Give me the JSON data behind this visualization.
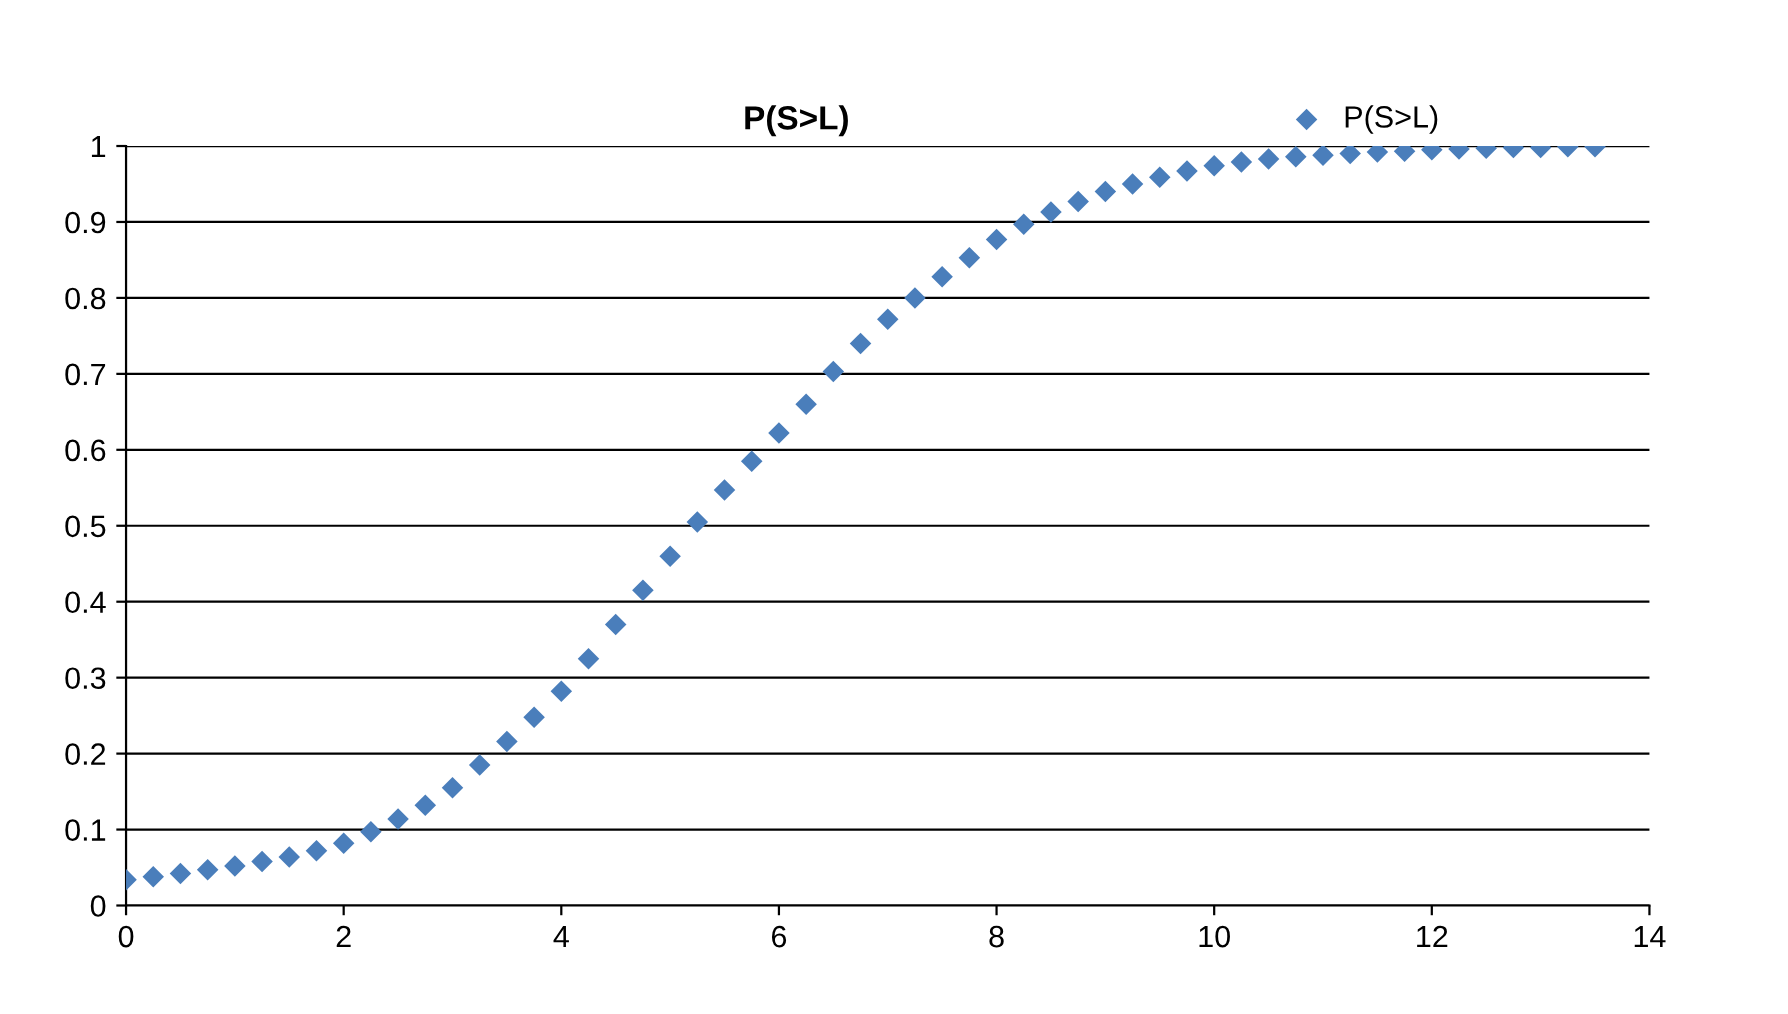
{
  "chart_data": {
    "type": "scatter",
    "title": "P(S>L)",
    "x": [
      0,
      0.25,
      0.5,
      0.75,
      1,
      1.25,
      1.5,
      1.75,
      2,
      2.25,
      2.5,
      2.75,
      3,
      3.25,
      3.5,
      3.75,
      4,
      4.25,
      4.5,
      4.75,
      5,
      5.25,
      5.5,
      5.75,
      6,
      6.25,
      6.5,
      6.75,
      7,
      7.25,
      7.5,
      7.75,
      8,
      8.25,
      8.5,
      8.75,
      9,
      9.25,
      9.5,
      9.75,
      10,
      10.25,
      10.5,
      10.75,
      11,
      11.25,
      11.5,
      11.75,
      12,
      12.25,
      12.5,
      12.75,
      13,
      13.25,
      13.5
    ],
    "series": [
      {
        "name": "P(S>L)",
        "color": "#4a7ebb",
        "values": [
          0.034,
          0.038,
          0.042,
          0.047,
          0.052,
          0.058,
          0.064,
          0.072,
          0.082,
          0.097,
          0.114,
          0.132,
          0.155,
          0.185,
          0.216,
          0.248,
          0.282,
          0.325,
          0.37,
          0.415,
          0.46,
          0.505,
          0.547,
          0.585,
          0.622,
          0.66,
          0.703,
          0.74,
          0.772,
          0.8,
          0.828,
          0.853,
          0.877,
          0.897,
          0.913,
          0.927,
          0.94,
          0.95,
          0.959,
          0.967,
          0.974,
          0.979,
          0.983,
          0.986,
          0.988,
          0.99,
          0.992,
          0.993,
          0.995,
          0.996,
          0.997,
          0.998,
          0.998,
          0.999,
          0.999
        ]
      }
    ],
    "xlim": [
      0,
      14
    ],
    "xticks": [
      0,
      2,
      4,
      6,
      8,
      10,
      12,
      14
    ],
    "ylim": [
      0,
      1
    ],
    "yticks": [
      0,
      0.1,
      0.2,
      0.3,
      0.4,
      0.5,
      0.6,
      0.7,
      0.8,
      0.9,
      1
    ],
    "grid": "y",
    "legend": "top right",
    "marker": "diamond"
  }
}
